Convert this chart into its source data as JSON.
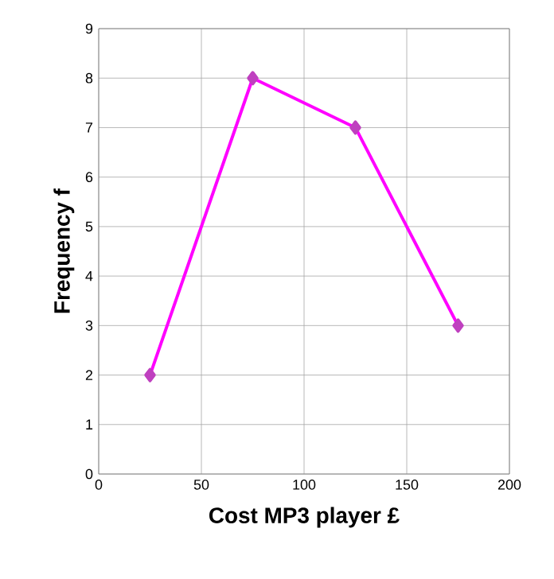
{
  "chart_data": {
    "type": "line",
    "xlabel": "Cost MP3 player  £",
    "ylabel": "Frequency  f",
    "x": [
      25,
      75,
      125,
      175
    ],
    "series": [
      {
        "color": "#ff00ff",
        "values": [
          2,
          8,
          7,
          3
        ]
      }
    ],
    "xlim": [
      0,
      200
    ],
    "xticks": [
      0,
      50,
      100,
      150,
      200
    ],
    "ylim": [
      0,
      9
    ],
    "yticks": [
      0,
      1,
      2,
      3,
      4,
      5,
      6,
      7,
      8,
      9
    ],
    "grid": true,
    "marker": "diamond",
    "line_style": "solid"
  }
}
